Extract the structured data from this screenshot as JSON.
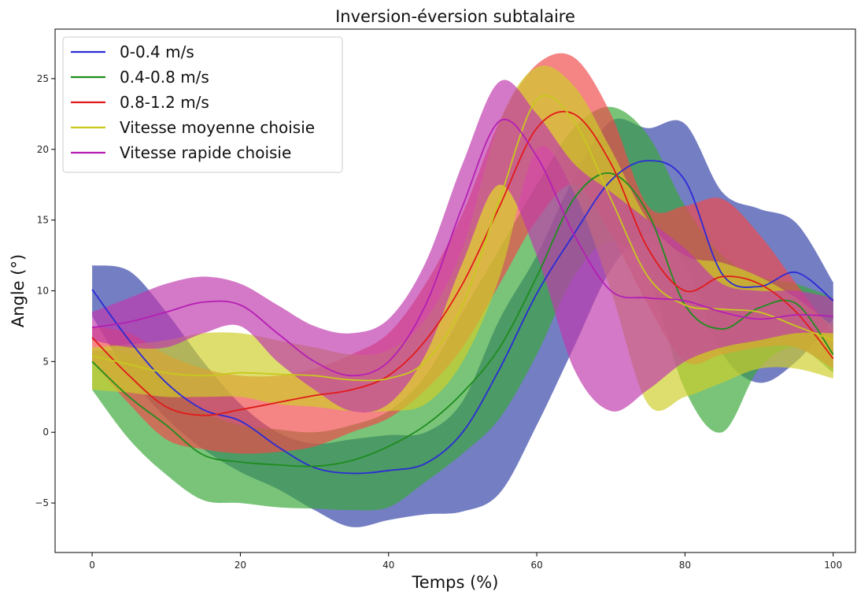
{
  "chart_data": {
    "type": "area",
    "title": "Inversion-éversion subtalaire",
    "xlabel": "Temps (%)",
    "ylabel": "Angle (°)",
    "xlim": [
      -5,
      103
    ],
    "ylim": [
      -8.5,
      28.5
    ],
    "xticks": [
      0,
      20,
      40,
      60,
      80,
      100
    ],
    "yticks": [
      -5,
      0,
      5,
      10,
      15,
      20,
      25
    ],
    "grid": false,
    "legend_position": "top-left",
    "x": [
      0,
      5,
      10,
      15,
      20,
      25,
      30,
      35,
      40,
      45,
      50,
      55,
      60,
      65,
      70,
      75,
      80,
      85,
      90,
      95,
      100
    ],
    "series": [
      {
        "name": "0-0.4 m/s",
        "color": "#2b2bd6",
        "band_color": "#3241a6",
        "mean": [
          10.1,
          6.5,
          3.5,
          1.6,
          0.8,
          -1.0,
          -2.5,
          -2.9,
          -2.7,
          -2.2,
          0.0,
          4.5,
          9.8,
          14.0,
          17.8,
          19.2,
          17.8,
          11.2,
          10.3,
          11.3,
          9.3
        ],
        "upper": [
          11.8,
          11.4,
          8.5,
          5.0,
          2.0,
          0.0,
          -0.8,
          -0.5,
          -0.2,
          0.0,
          2.2,
          8.0,
          12.5,
          18.0,
          22.0,
          21.5,
          21.8,
          17.0,
          15.8,
          14.8,
          10.6
        ],
        "lower": [
          8.2,
          4.0,
          1.0,
          -1.2,
          -2.8,
          -4.0,
          -5.5,
          -6.7,
          -6.2,
          -5.8,
          -5.6,
          -4.3,
          0.5,
          6.0,
          11.5,
          14.0,
          11.8,
          5.6,
          3.5,
          5.0,
          8.0
        ]
      },
      {
        "name": "0.4-0.8 m/s",
        "color": "#1e8c1e",
        "band_color": "#3aa83a",
        "mean": [
          5.0,
          2.5,
          0.5,
          -1.6,
          -2.1,
          -2.3,
          -2.4,
          -2.0,
          -1.0,
          0.5,
          2.8,
          6.0,
          11.0,
          16.5,
          18.3,
          15.5,
          9.0,
          7.3,
          8.8,
          9.1,
          5.5
        ],
        "upper": [
          5.8,
          5.5,
          3.5,
          1.5,
          0.5,
          0.2,
          0.0,
          0.5,
          1.5,
          4.0,
          8.5,
          13.0,
          17.5,
          21.5,
          23.0,
          21.0,
          16.0,
          12.5,
          11.0,
          10.5,
          9.5
        ],
        "lower": [
          3.0,
          -0.5,
          -3.0,
          -4.8,
          -5.0,
          -5.3,
          -5.4,
          -5.5,
          -5.3,
          -3.5,
          -1.5,
          1.0,
          5.5,
          11.0,
          13.5,
          11.0,
          3.0,
          0.0,
          4.5,
          6.0,
          4.2
        ]
      },
      {
        "name": "0.8-1.2 m/s",
        "color": "#e11a1a",
        "band_color": "#f04a4a",
        "mean": [
          6.7,
          4.0,
          1.8,
          1.2,
          1.6,
          2.1,
          2.6,
          3.0,
          4.0,
          6.5,
          10.5,
          16.0,
          21.5,
          22.5,
          19.0,
          13.0,
          10.0,
          11.0,
          10.5,
          8.5,
          5.2
        ],
        "upper": [
          7.5,
          7.0,
          5.5,
          4.5,
          4.0,
          4.0,
          4.5,
          5.5,
          7.0,
          10.5,
          15.5,
          22.0,
          26.0,
          26.5,
          22.5,
          16.0,
          16.0,
          16.5,
          14.0,
          10.5,
          7.0
        ],
        "lower": [
          5.0,
          2.0,
          -0.5,
          -1.2,
          -1.5,
          -1.4,
          -1.0,
          0.0,
          1.0,
          3.0,
          6.0,
          10.5,
          15.0,
          17.5,
          14.0,
          9.0,
          5.0,
          5.5,
          6.0,
          6.0,
          4.5
        ]
      },
      {
        "name": "Vitesse moyenne choisie",
        "color": "#c8c81e",
        "band_color": "#cfcf2a",
        "mean": [
          5.4,
          4.8,
          4.2,
          4.0,
          4.2,
          4.1,
          4.0,
          3.7,
          3.8,
          5.0,
          9.0,
          16.5,
          23.5,
          22.0,
          16.5,
          11.0,
          9.0,
          8.7,
          8.5,
          7.5,
          6.5
        ],
        "upper": [
          6.0,
          6.2,
          6.5,
          7.0,
          7.0,
          6.5,
          6.0,
          5.5,
          5.8,
          8.0,
          13.0,
          22.0,
          25.8,
          24.5,
          20.0,
          15.0,
          12.5,
          12.0,
          11.0,
          9.5,
          7.5
        ],
        "lower": [
          3.0,
          2.8,
          2.5,
          2.5,
          2.5,
          2.0,
          1.8,
          1.5,
          1.5,
          2.0,
          5.0,
          11.0,
          20.0,
          17.0,
          10.0,
          2.0,
          2.5,
          3.5,
          4.5,
          4.5,
          3.8
        ]
      },
      {
        "name": "Vitesse rapide choisie",
        "color": "#b41eb4",
        "band_color": "#bf3aad",
        "mean": [
          7.4,
          7.8,
          8.5,
          9.2,
          9.0,
          7.0,
          5.0,
          4.0,
          5.0,
          9.0,
          16.0,
          22.0,
          19.5,
          14.0,
          10.0,
          9.5,
          9.3,
          8.5,
          8.0,
          8.3,
          8.2
        ],
        "upper": [
          8.5,
          9.5,
          10.5,
          11.0,
          10.5,
          9.0,
          7.5,
          7.0,
          8.0,
          12.0,
          19.0,
          24.8,
          22.5,
          19.0,
          17.0,
          15.0,
          13.0,
          10.5,
          10.0,
          10.0,
          9.5
        ],
        "lower": [
          6.5,
          6.0,
          6.0,
          7.0,
          7.5,
          5.0,
          3.0,
          1.5,
          2.0,
          5.5,
          12.0,
          17.5,
          12.5,
          4.5,
          1.5,
          3.0,
          5.0,
          6.0,
          6.5,
          7.0,
          7.0
        ]
      }
    ]
  }
}
